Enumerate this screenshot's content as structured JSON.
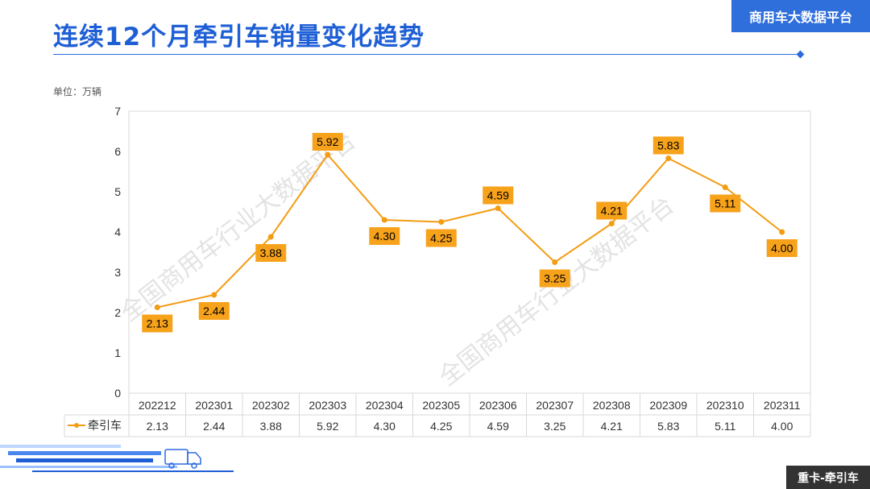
{
  "header": {
    "title": "连续12个月牵引车销量变化趋势",
    "brand": "商用车大数据平台"
  },
  "unit_label": "单位：万辆",
  "watermark": "全国商用车行业大数据平台",
  "footer": {
    "tag": "重卡-牵引车"
  },
  "colors": {
    "accent": "#1f5fd6",
    "series": "#f39c12",
    "label_bg": "#f7a21b"
  },
  "chart_data": {
    "type": "line",
    "categories": [
      "202212",
      "202301",
      "202302",
      "202303",
      "202304",
      "202305",
      "202306",
      "202307",
      "202308",
      "202309",
      "202310",
      "202311"
    ],
    "series": [
      {
        "name": "牵引车",
        "values": [
          2.13,
          2.44,
          3.88,
          5.92,
          4.3,
          4.25,
          4.59,
          3.25,
          4.21,
          5.83,
          5.11,
          4.0
        ]
      }
    ],
    "value_labels": [
      "2.13",
      "2.44",
      "3.88",
      "5.92",
      "4.30",
      "4.25",
      "4.59",
      "3.25",
      "4.21",
      "5.83",
      "5.11",
      "4.00"
    ],
    "ylim": [
      0,
      7
    ],
    "yticks": [
      "0",
      "1",
      "2",
      "3",
      "4",
      "5",
      "6",
      "7"
    ],
    "grid": false,
    "legend": "data-table-left",
    "data_table": true
  }
}
